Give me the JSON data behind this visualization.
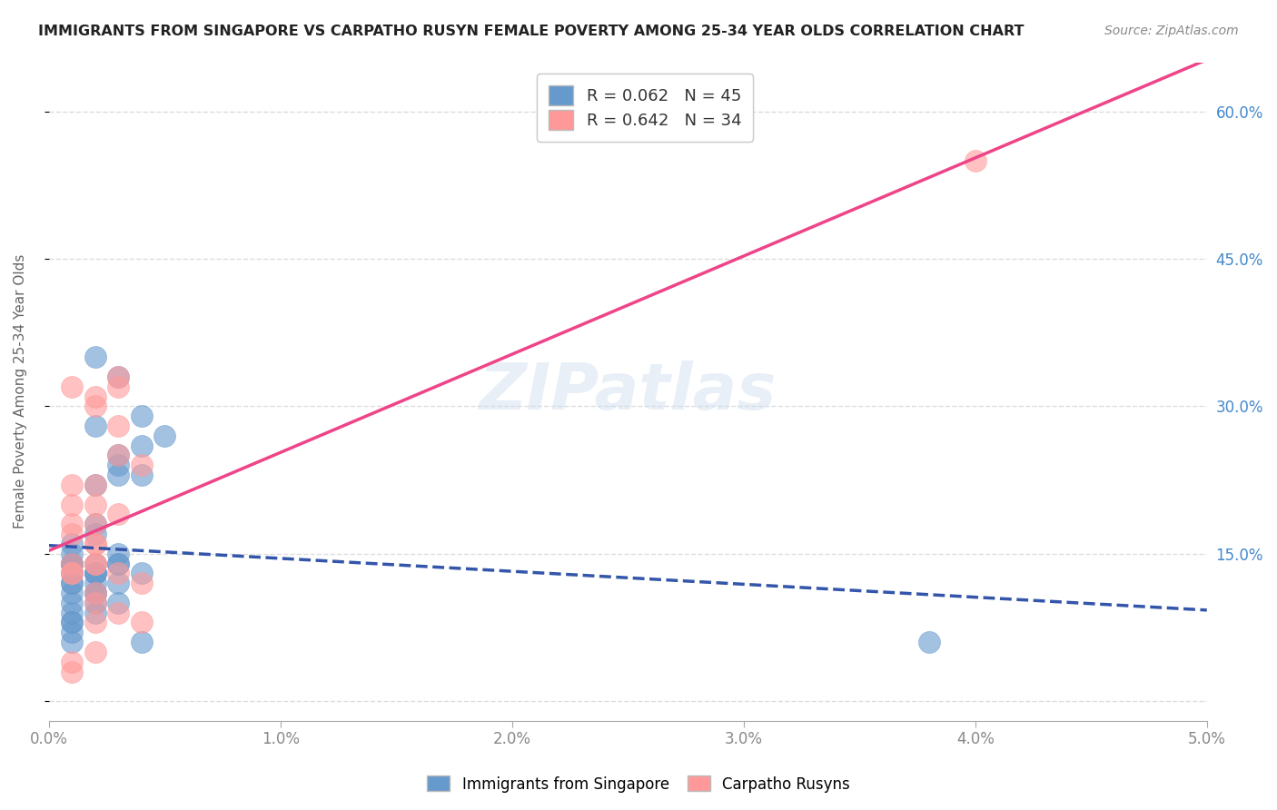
{
  "title": "IMMIGRANTS FROM SINGAPORE VS CARPATHO RUSYN FEMALE POVERTY AMONG 25-34 YEAR OLDS CORRELATION CHART",
  "source": "Source: ZipAtlas.com",
  "ylabel": "Female Poverty Among 25-34 Year Olds",
  "xlim": [
    0.0,
    0.05
  ],
  "ylim": [
    -0.02,
    0.65
  ],
  "xticklabels": [
    "0.0%",
    "1.0%",
    "2.0%",
    "3.0%",
    "4.0%",
    "5.0%"
  ],
  "xtick_vals": [
    0.0,
    0.01,
    0.02,
    0.03,
    0.04,
    0.05
  ],
  "yticks_left": [
    0.0,
    0.15,
    0.3,
    0.45,
    0.6
  ],
  "yticks_right": [
    0.15,
    0.3,
    0.45,
    0.6
  ],
  "yticklabels_right": [
    "15.0%",
    "30.0%",
    "45.0%",
    "60.0%"
  ],
  "blue_color": "#6699CC",
  "pink_color": "#FF9999",
  "blue_line_color": "#3355AA",
  "pink_line_color": "#EE4488",
  "watermark": "ZIPatlas",
  "blue_scatter_x": [
    0.001,
    0.002,
    0.001,
    0.003,
    0.002,
    0.004,
    0.003,
    0.001,
    0.002,
    0.001,
    0.001,
    0.002,
    0.003,
    0.002,
    0.001,
    0.003,
    0.004,
    0.002,
    0.001,
    0.002,
    0.003,
    0.002,
    0.004,
    0.005,
    0.001,
    0.002,
    0.003,
    0.001,
    0.001,
    0.002,
    0.002,
    0.003,
    0.001,
    0.001,
    0.004,
    0.003,
    0.002,
    0.001,
    0.004,
    0.002,
    0.001,
    0.002,
    0.038,
    0.001,
    0.003
  ],
  "blue_scatter_y": [
    0.13,
    0.14,
    0.15,
    0.33,
    0.35,
    0.26,
    0.24,
    0.16,
    0.17,
    0.12,
    0.11,
    0.13,
    0.25,
    0.22,
    0.14,
    0.23,
    0.23,
    0.28,
    0.12,
    0.18,
    0.14,
    0.11,
    0.29,
    0.27,
    0.1,
    0.12,
    0.14,
    0.09,
    0.08,
    0.11,
    0.13,
    0.1,
    0.08,
    0.07,
    0.13,
    0.12,
    0.1,
    0.06,
    0.06,
    0.13,
    0.14,
    0.09,
    0.06,
    0.14,
    0.15
  ],
  "pink_scatter_x": [
    0.001,
    0.002,
    0.001,
    0.002,
    0.003,
    0.002,
    0.001,
    0.002,
    0.003,
    0.001,
    0.002,
    0.003,
    0.001,
    0.002,
    0.004,
    0.003,
    0.002,
    0.001,
    0.002,
    0.003,
    0.004,
    0.002,
    0.001,
    0.003,
    0.002,
    0.001,
    0.002,
    0.001,
    0.002,
    0.003,
    0.004,
    0.002,
    0.04,
    0.001
  ],
  "pink_scatter_y": [
    0.14,
    0.16,
    0.32,
    0.31,
    0.32,
    0.3,
    0.22,
    0.2,
    0.33,
    0.17,
    0.18,
    0.25,
    0.13,
    0.16,
    0.24,
    0.19,
    0.14,
    0.18,
    0.11,
    0.09,
    0.08,
    0.1,
    0.13,
    0.28,
    0.22,
    0.2,
    0.05,
    0.04,
    0.14,
    0.13,
    0.12,
    0.08,
    0.55,
    0.03
  ]
}
